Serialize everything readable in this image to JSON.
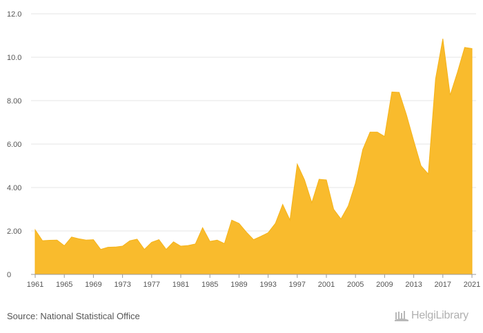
{
  "chart_data": {
    "type": "area",
    "title": "",
    "xlabel": "",
    "ylabel": "",
    "ylim": [
      0,
      12
    ],
    "y_ticks": [
      "0",
      "2.00",
      "4.00",
      "6.00",
      "8.00",
      "10.0",
      "12.0"
    ],
    "y_tick_values": [
      0,
      2,
      4,
      6,
      8,
      10,
      12
    ],
    "x_ticks": [
      "1961",
      "1965",
      "1969",
      "1973",
      "1977",
      "1981",
      "1985",
      "1989",
      "1993",
      "1997",
      "2001",
      "2005",
      "2009",
      "2013",
      "2017",
      "2021"
    ],
    "x_tick_values": [
      1961,
      1965,
      1969,
      1973,
      1977,
      1981,
      1985,
      1989,
      1993,
      1997,
      2001,
      2005,
      2009,
      2013,
      2017,
      2021
    ],
    "grid": true,
    "series": [
      {
        "name": "Value",
        "color": "#f9bb2d",
        "x": [
          1961,
          1962,
          1963,
          1964,
          1965,
          1966,
          1967,
          1968,
          1969,
          1970,
          1971,
          1972,
          1973,
          1974,
          1975,
          1976,
          1977,
          1978,
          1979,
          1980,
          1981,
          1982,
          1983,
          1984,
          1985,
          1986,
          1987,
          1988,
          1989,
          1990,
          1991,
          1992,
          1993,
          1994,
          1995,
          1996,
          1997,
          1998,
          1999,
          2000,
          2001,
          2002,
          2003,
          2004,
          2005,
          2006,
          2007,
          2008,
          2009,
          2010,
          2011,
          2012,
          2013,
          2014,
          2015,
          2016,
          2017,
          2018,
          2019,
          2020,
          2021
        ],
        "values": [
          2.05,
          1.55,
          1.57,
          1.58,
          1.32,
          1.72,
          1.64,
          1.58,
          1.6,
          1.15,
          1.25,
          1.26,
          1.3,
          1.55,
          1.62,
          1.15,
          1.48,
          1.6,
          1.15,
          1.5,
          1.3,
          1.33,
          1.4,
          2.15,
          1.52,
          1.58,
          1.42,
          2.5,
          2.35,
          1.95,
          1.6,
          1.75,
          1.92,
          2.35,
          3.22,
          2.5,
          5.08,
          4.35,
          3.3,
          4.38,
          4.35,
          3.0,
          2.55,
          3.15,
          4.2,
          5.75,
          6.55,
          6.55,
          6.35,
          8.4,
          8.38,
          7.35,
          6.15,
          5.0,
          4.62,
          9.0,
          10.85,
          8.25,
          9.3,
          10.45,
          10.4
        ]
      }
    ]
  },
  "footer": {
    "source": "Source: National Statistical Office",
    "brand": "HelgiLibrary"
  }
}
